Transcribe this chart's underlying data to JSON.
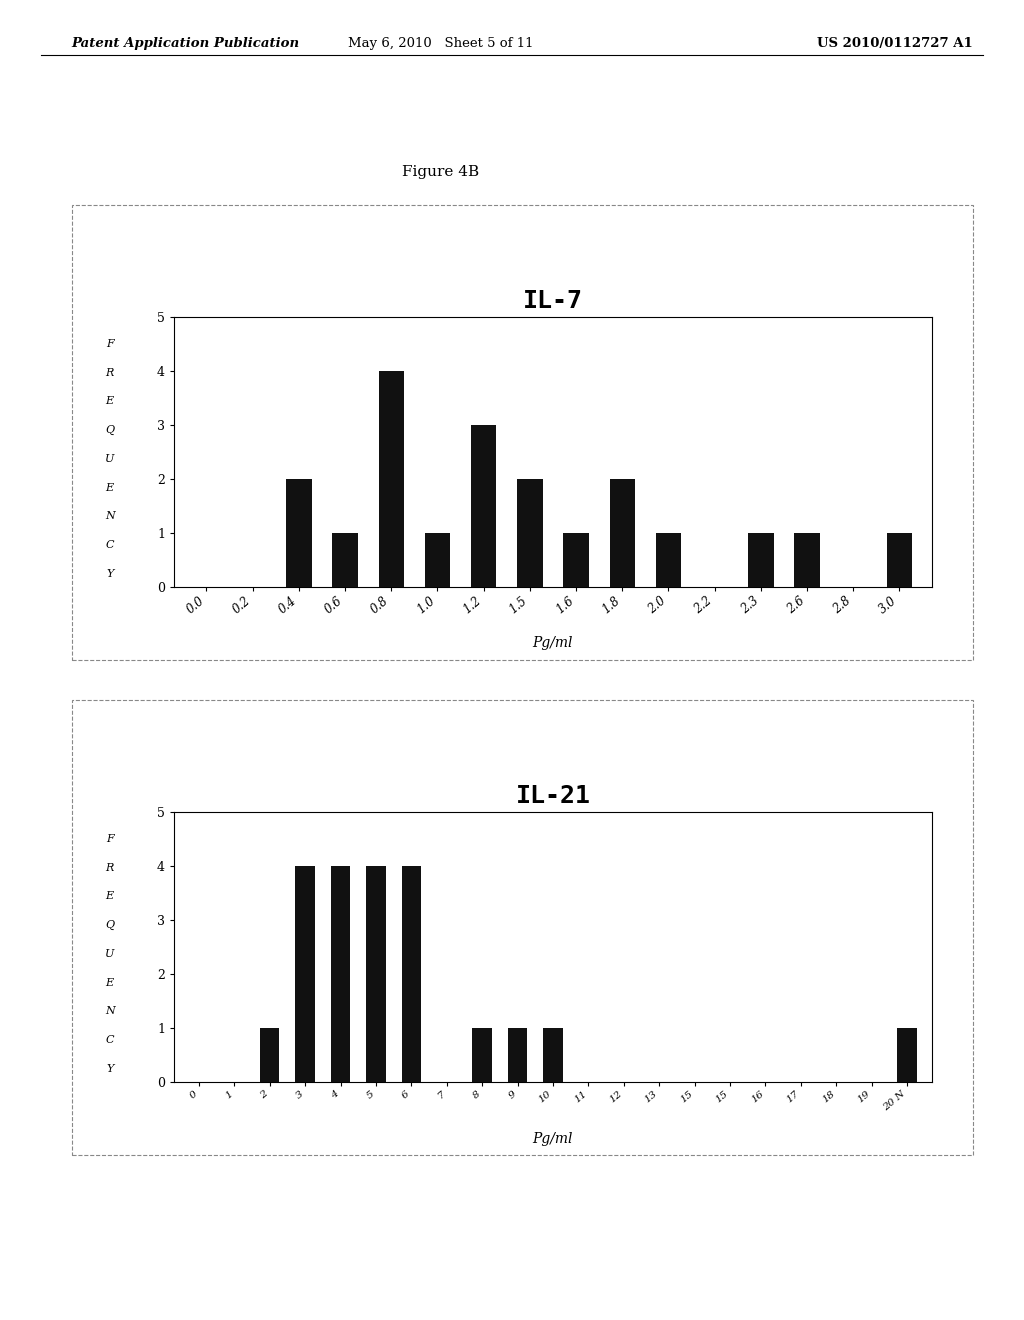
{
  "figure_caption": "Figure 4B",
  "background_color": "#ffffff",
  "il7": {
    "title": "IL-7",
    "xlabel": "Pg/ml",
    "ylabel_letters": [
      "F",
      "R",
      "E",
      "Q",
      "U",
      "E",
      "N",
      "C",
      "Y"
    ],
    "ylim": [
      0,
      5
    ],
    "yticks": [
      0,
      1,
      2,
      3,
      4,
      5
    ],
    "categories": [
      "0.0",
      "0.2",
      "0.4",
      "0.6",
      "0.8",
      "1.0",
      "1.2",
      "1.5",
      "1.6",
      "1.8",
      "2.0",
      "2.2",
      "2.3",
      "2.6",
      "2.8",
      "3.0"
    ],
    "values": [
      0,
      0,
      2,
      1,
      4,
      1,
      3,
      2,
      1,
      2,
      1,
      0,
      1,
      1,
      0,
      1
    ],
    "bar_color": "#111111",
    "bar_width": 0.55
  },
  "il21": {
    "title": "IL-21",
    "xlabel": "Pg/ml",
    "ylabel_letters": [
      "F",
      "R",
      "E",
      "Q",
      "U",
      "E",
      "N",
      "C",
      "Y"
    ],
    "ylim": [
      0,
      5
    ],
    "yticks": [
      0,
      1,
      2,
      3,
      4,
      5
    ],
    "categories": [
      "0",
      "1",
      "2",
      "3",
      "4",
      "5",
      "6",
      "7",
      "8",
      "9",
      "10",
      "11",
      "12",
      "13",
      "15",
      "15",
      "16",
      "17",
      "18",
      "19",
      "20 N"
    ],
    "values": [
      0,
      0,
      1,
      4,
      4,
      4,
      4,
      0,
      1,
      1,
      1,
      0,
      0,
      0,
      0,
      0,
      0,
      0,
      0,
      0,
      1
    ],
    "bar_color": "#111111",
    "bar_width": 0.55
  },
  "header_left": "Patent Application Publication",
  "header_center": "May 6, 2010   Sheet 5 of 11",
  "header_right": "US 2010/0112727 A1"
}
